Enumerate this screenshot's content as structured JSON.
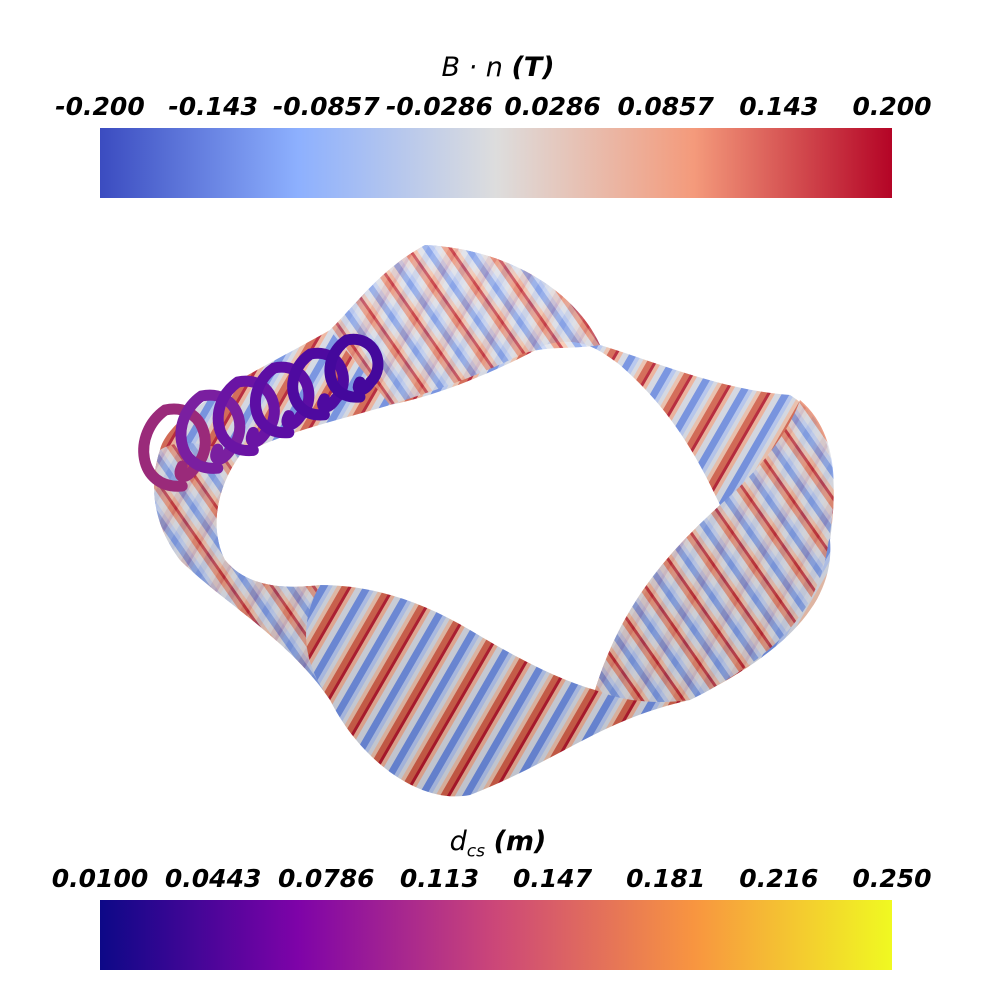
{
  "top_colorbar": {
    "variable": "B · n",
    "unit": "(T)",
    "ticks": [
      "-0.200",
      "-0.143",
      "-0.0857",
      "-0.0286",
      "0.0286",
      "0.0857",
      "0.143",
      "0.200"
    ],
    "colormap": "coolwarm",
    "colors": [
      "#3b4cc0",
      "#8db0fe",
      "#dddddd",
      "#f49a7b",
      "#b40426"
    ]
  },
  "bottom_colorbar": {
    "variable": "d",
    "subscript": "cs",
    "unit": "(m)",
    "ticks": [
      "0.0100",
      "0.0443",
      "0.0786",
      "0.113",
      "0.147",
      "0.181",
      "0.216",
      "0.250"
    ],
    "colormap": "plasma",
    "colors": [
      "#0d0887",
      "#7e03a8",
      "#cc4778",
      "#f89540",
      "#f0f921"
    ]
  },
  "scene": {
    "description_surface": "twisted toroidal band colored by B·n",
    "coil_count": 6,
    "coil_colors": [
      "#9a2a7a",
      "#7a1fa0",
      "#6a14a4",
      "#5c0ea4",
      "#4e0aa0",
      "#44089c"
    ]
  }
}
